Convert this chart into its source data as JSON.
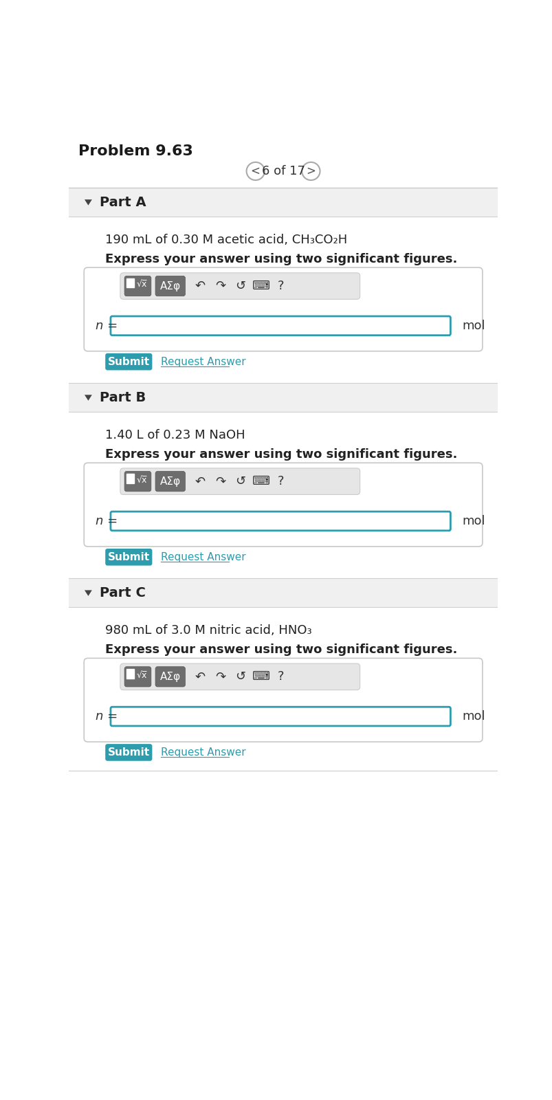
{
  "title": "Problem 9.63",
  "nav_text": "6 of 17",
  "bg_color": "#ffffff",
  "parts": [
    {
      "label": "Part A",
      "problem_text": "190 mL of 0.30 M acetic acid, CH₃CO₂H",
      "instruction": "Express your answer using two significant figures."
    },
    {
      "label": "Part B",
      "problem_text": "1.40 L of 0.23 M NaOH",
      "instruction": "Express your answer using two significant figures."
    },
    {
      "label": "Part C",
      "problem_text": "980 mL of 3.0 M nitric acid, HNO₃",
      "instruction": "Express your answer using two significant figures."
    }
  ],
  "submit_color": "#2d9cad",
  "request_answer_color": "#2d9cad",
  "input_border_color": "#2d9cad",
  "header_bg": "#f0f0f0",
  "header_line": "#d0d0d0",
  "outer_box_border": "#cccccc",
  "toolbar_bg": "#e4e4e4",
  "btn_bg": "#6d6d6d",
  "icon_color": "#333333",
  "text_color": "#222222",
  "mol_color": "#333333"
}
